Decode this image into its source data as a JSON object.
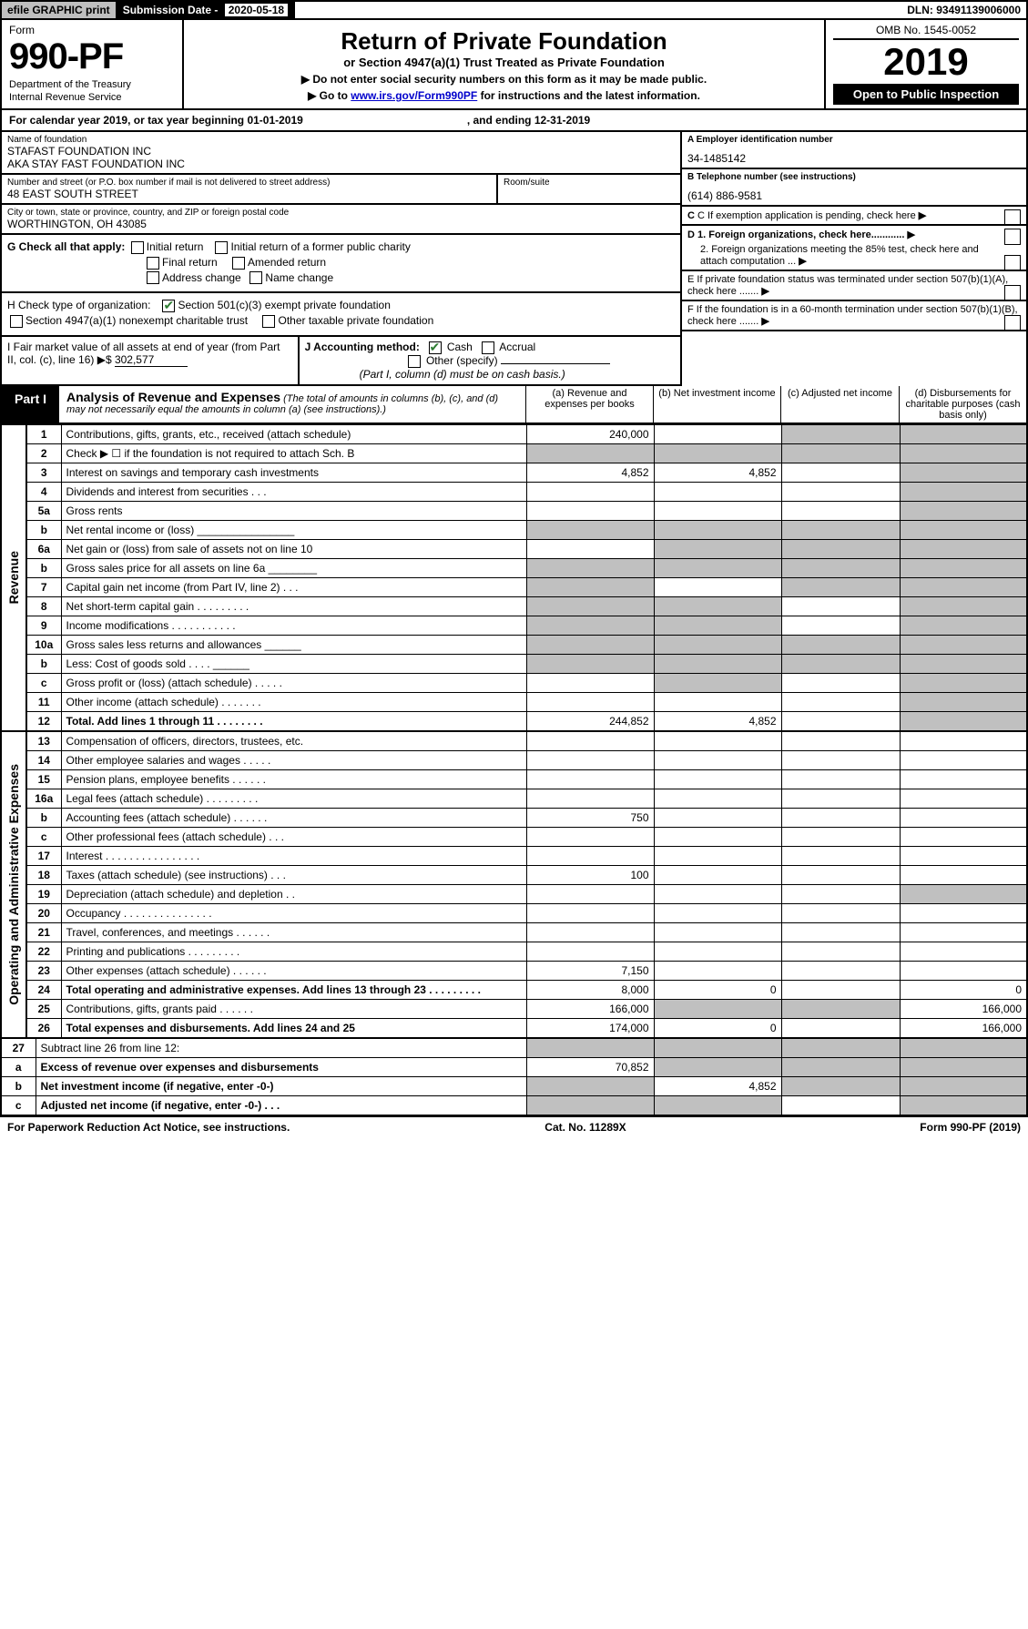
{
  "topbar": {
    "efile": "efile GRAPHIC print",
    "sub_date_lbl": "Submission Date - ",
    "sub_date_val": "2020-05-18",
    "dln": "DLN: 93491139006000"
  },
  "header": {
    "form_word": "Form",
    "form_num": "990-PF",
    "dept1": "Department of the Treasury",
    "dept2": "Internal Revenue Service",
    "title": "Return of Private Foundation",
    "subtitle": "or Section 4947(a)(1) Trust Treated as Private Foundation",
    "instr1": "▶ Do not enter social security numbers on this form as it may be made public.",
    "instr2_pre": "▶ Go to ",
    "instr2_link": "www.irs.gov/Form990PF",
    "instr2_post": " for instructions and the latest information.",
    "omb": "OMB No. 1545-0052",
    "year": "2019",
    "open": "Open to Public Inspection"
  },
  "cal": {
    "text": "For calendar year 2019, or tax year beginning 01-01-2019",
    "end": ", and ending 12-31-2019"
  },
  "name": {
    "lbl": "Name of foundation",
    "line1": "STAFAST FOUNDATION INC",
    "line2": "AKA STAY FAST FOUNDATION INC"
  },
  "addr": {
    "lbl": "Number and street (or P.O. box number if mail is not delivered to street address)",
    "val": "48 EAST SOUTH STREET",
    "room_lbl": "Room/suite"
  },
  "city": {
    "lbl": "City or town, state or province, country, and ZIP or foreign postal code",
    "val": "WORTHINGTON, OH  43085"
  },
  "ein": {
    "lbl": "A Employer identification number",
    "val": "34-1485142"
  },
  "tel": {
    "lbl": "B Telephone number (see instructions)",
    "val": "(614) 886-9581"
  },
  "c_lbl": "C If exemption application is pending, check here",
  "d1": "D 1. Foreign organizations, check here............",
  "d2": "2. Foreign organizations meeting the 85% test, check here and attach computation ...",
  "e_lbl": "E  If private foundation status was terminated under section 507(b)(1)(A), check here .......",
  "f_lbl": "F  If the foundation is in a 60-month termination under section 507(b)(1)(B), check here .......",
  "g": {
    "lbl": "G Check all that apply:",
    "opts": [
      "Initial return",
      "Initial return of a former public charity",
      "Final return",
      "Amended return",
      "Address change",
      "Name change"
    ]
  },
  "h": {
    "lbl": "H Check type of organization:",
    "o1": "Section 501(c)(3) exempt private foundation",
    "o2": "Section 4947(a)(1) nonexempt charitable trust",
    "o3": "Other taxable private foundation"
  },
  "i": {
    "lbl": "I Fair market value of all assets at end of year (from Part II, col. (c), line 16)",
    "val": "302,577"
  },
  "j": {
    "lbl": "J Accounting method:",
    "cash": "Cash",
    "accr": "Accrual",
    "other": "Other (specify)",
    "note": "(Part I, column (d) must be on cash basis.)"
  },
  "part1": {
    "tab": "Part I",
    "title": "Analysis of Revenue and Expenses",
    "note": "(The total of amounts in columns (b), (c), and (d) may not necessarily equal the amounts in column (a) (see instructions).)",
    "cols": {
      "a": "(a)  Revenue and expenses per books",
      "b": "(b)  Net investment income",
      "c": "(c)  Adjusted net income",
      "d": "(d)  Disbursements for charitable purposes (cash basis only)"
    }
  },
  "side_rev": "Revenue",
  "side_exp": "Operating and Administrative Expenses",
  "rows": [
    {
      "n": "1",
      "lbl": "Contributions, gifts, grants, etc., received (attach schedule)",
      "a": "240,000",
      "b": "",
      "c": "g",
      "d": "g"
    },
    {
      "n": "2",
      "lbl": "Check ▶ ☐ if the foundation is not required to attach Sch. B",
      "a": "g",
      "b": "g",
      "c": "g",
      "d": "g"
    },
    {
      "n": "3",
      "lbl": "Interest on savings and temporary cash investments",
      "a": "4,852",
      "b": "4,852",
      "c": "",
      "d": "g"
    },
    {
      "n": "4",
      "lbl": "Dividends and interest from securities   .  .  .",
      "a": "",
      "b": "",
      "c": "",
      "d": "g"
    },
    {
      "n": "5a",
      "lbl": "Gross rents",
      "a": "",
      "b": "",
      "c": "",
      "d": "g"
    },
    {
      "n": "b",
      "lbl": "Net rental income or (loss)  ________________",
      "a": "g",
      "b": "g",
      "c": "g",
      "d": "g"
    },
    {
      "n": "6a",
      "lbl": "Net gain or (loss) from sale of assets not on line 10",
      "a": "",
      "b": "g",
      "c": "g",
      "d": "g"
    },
    {
      "n": "b",
      "lbl": "Gross sales price for all assets on line 6a ________",
      "a": "g",
      "b": "g",
      "c": "g",
      "d": "g"
    },
    {
      "n": "7",
      "lbl": "Capital gain net income (from Part IV, line 2)   .  .  .",
      "a": "g",
      "b": "",
      "c": "g",
      "d": "g"
    },
    {
      "n": "8",
      "lbl": "Net short-term capital gain  . . . . . . . . .",
      "a": "g",
      "b": "g",
      "c": "",
      "d": "g"
    },
    {
      "n": "9",
      "lbl": "Income modifications  . . . . . . . . . . .",
      "a": "g",
      "b": "g",
      "c": "",
      "d": "g"
    },
    {
      "n": "10a",
      "lbl": "Gross sales less returns and allowances  ______",
      "a": "g",
      "b": "g",
      "c": "g",
      "d": "g"
    },
    {
      "n": "b",
      "lbl": "Less: Cost of goods sold     .  .  .  .   ______",
      "a": "g",
      "b": "g",
      "c": "g",
      "d": "g"
    },
    {
      "n": "c",
      "lbl": "Gross profit or (loss) (attach schedule)   . . . . .",
      "a": "",
      "b": "g",
      "c": "",
      "d": "g"
    },
    {
      "n": "11",
      "lbl": "Other income (attach schedule)   . . . . . . .",
      "a": "",
      "b": "",
      "c": "",
      "d": "g"
    },
    {
      "n": "12",
      "lbl": "Total. Add lines 1 through 11   . . . . . . . .",
      "a": "244,852",
      "b": "4,852",
      "c": "",
      "d": "g",
      "bold": true
    }
  ],
  "rows2": [
    {
      "n": "13",
      "lbl": "Compensation of officers, directors, trustees, etc.",
      "a": "",
      "b": "",
      "c": "",
      "d": ""
    },
    {
      "n": "14",
      "lbl": "Other employee salaries and wages   . . . . .",
      "a": "",
      "b": "",
      "c": "",
      "d": ""
    },
    {
      "n": "15",
      "lbl": "Pension plans, employee benefits   . . . . . .",
      "a": "",
      "b": "",
      "c": "",
      "d": ""
    },
    {
      "n": "16a",
      "lbl": "Legal fees (attach schedule) . . . . . . . . .",
      "a": "",
      "b": "",
      "c": "",
      "d": ""
    },
    {
      "n": "b",
      "lbl": "Accounting fees (attach schedule)   . . . . . .",
      "a": "750",
      "b": "",
      "c": "",
      "d": ""
    },
    {
      "n": "c",
      "lbl": "Other professional fees (attach schedule)   . . .",
      "a": "",
      "b": "",
      "c": "",
      "d": ""
    },
    {
      "n": "17",
      "lbl": "Interest  . . . . . . . . . . . . . . . .",
      "a": "",
      "b": "",
      "c": "",
      "d": ""
    },
    {
      "n": "18",
      "lbl": "Taxes (attach schedule) (see instructions)   . . .",
      "a": "100",
      "b": "",
      "c": "",
      "d": ""
    },
    {
      "n": "19",
      "lbl": "Depreciation (attach schedule) and depletion   . .",
      "a": "",
      "b": "",
      "c": "",
      "d": "g"
    },
    {
      "n": "20",
      "lbl": "Occupancy . . . . . . . . . . . . . . .",
      "a": "",
      "b": "",
      "c": "",
      "d": ""
    },
    {
      "n": "21",
      "lbl": "Travel, conferences, and meetings  . . . . . .",
      "a": "",
      "b": "",
      "c": "",
      "d": ""
    },
    {
      "n": "22",
      "lbl": "Printing and publications  . . . . . . . . .",
      "a": "",
      "b": "",
      "c": "",
      "d": ""
    },
    {
      "n": "23",
      "lbl": "Other expenses (attach schedule)  . . . . . .",
      "a": "7,150",
      "b": "",
      "c": "",
      "d": ""
    },
    {
      "n": "24",
      "lbl": "Total operating and administrative expenses. Add lines 13 through 23  . . . . . . . . .",
      "a": "8,000",
      "b": "0",
      "c": "",
      "d": "0",
      "bold": true
    },
    {
      "n": "25",
      "lbl": "Contributions, gifts, grants paid     . . . . . .",
      "a": "166,000",
      "b": "g",
      "c": "g",
      "d": "166,000"
    },
    {
      "n": "26",
      "lbl": "Total expenses and disbursements. Add lines 24 and 25",
      "a": "174,000",
      "b": "0",
      "c": "",
      "d": "166,000",
      "bold": true
    }
  ],
  "rows3": [
    {
      "n": "27",
      "lbl": "Subtract line 26 from line 12:",
      "a": "g",
      "b": "g",
      "c": "g",
      "d": "g"
    },
    {
      "n": "a",
      "lbl": "Excess of revenue over expenses and disbursements",
      "a": "70,852",
      "b": "g",
      "c": "g",
      "d": "g",
      "bold": true
    },
    {
      "n": "b",
      "lbl": "Net investment income (if negative, enter -0-)",
      "a": "g",
      "b": "4,852",
      "c": "g",
      "d": "g",
      "bold": true
    },
    {
      "n": "c",
      "lbl": "Adjusted net income (if negative, enter -0-)  . . .",
      "a": "g",
      "b": "g",
      "c": "",
      "d": "g",
      "bold": true
    }
  ],
  "footer": {
    "l": "For Paperwork Reduction Act Notice, see instructions.",
    "m": "Cat. No. 11289X",
    "r": "Form 990-PF (2019)"
  }
}
